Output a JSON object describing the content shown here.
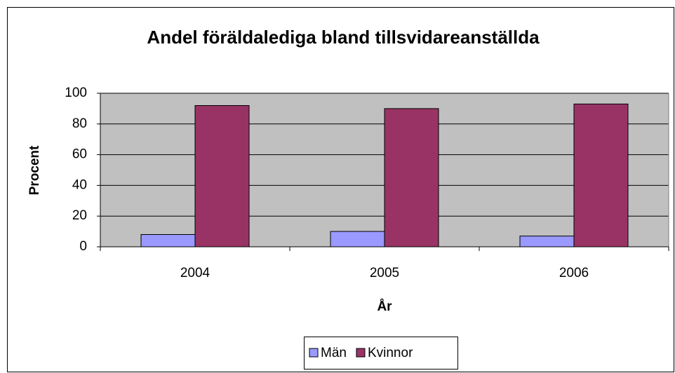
{
  "chart_data": {
    "type": "bar",
    "title": "Andel föräldalediga bland tillsvidareanställda",
    "x_label": "År",
    "y_label": "Procent",
    "categories": [
      "2004",
      "2005",
      "2006"
    ],
    "series": [
      {
        "name": "Män",
        "color": "#9999ff",
        "values": [
          8,
          10,
          7
        ]
      },
      {
        "name": "Kvinnor",
        "color": "#993366",
        "values": [
          92,
          90,
          93
        ]
      }
    ],
    "ylim": [
      0,
      100
    ],
    "yticks": [
      0,
      20,
      40,
      60,
      80,
      100
    ],
    "grid": true,
    "legend": "bottom"
  }
}
